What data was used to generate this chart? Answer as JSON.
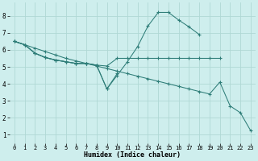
{
  "xlabel": "Humidex (Indice chaleur)",
  "bg_color": "#ceeeed",
  "grid_color": "#b0d8d5",
  "line_color": "#2e7d78",
  "xlim": [
    -0.5,
    23.5
  ],
  "ylim": [
    0.5,
    8.8
  ],
  "xticks": [
    0,
    1,
    2,
    3,
    4,
    5,
    6,
    7,
    8,
    9,
    10,
    11,
    12,
    13,
    14,
    15,
    16,
    17,
    18,
    19,
    20,
    21,
    22,
    23
  ],
  "yticks": [
    1,
    2,
    3,
    4,
    5,
    6,
    7,
    8
  ],
  "series": [
    {
      "x": [
        0,
        1,
        2,
        3,
        4,
        5,
        6,
        7,
        8,
        9,
        10,
        11,
        12,
        13,
        14,
        15,
        16,
        17,
        18
      ],
      "y": [
        6.5,
        6.3,
        5.8,
        5.55,
        5.4,
        5.3,
        5.2,
        5.2,
        5.1,
        3.7,
        4.5,
        5.3,
        6.2,
        7.4,
        8.2,
        8.2,
        7.75,
        7.35,
        6.9
      ]
    },
    {
      "x": [
        0,
        1,
        2,
        3,
        4,
        5,
        6,
        7,
        8,
        9,
        10,
        11,
        12,
        13,
        14,
        15,
        16,
        17,
        18,
        19,
        20
      ],
      "y": [
        6.5,
        6.3,
        5.8,
        5.55,
        5.4,
        5.3,
        5.2,
        5.2,
        5.1,
        5.05,
        5.5,
        5.5,
        5.5,
        5.5,
        5.5,
        5.5,
        5.5,
        5.5,
        5.5,
        5.5,
        5.5
      ]
    },
    {
      "x": [
        0,
        1,
        2,
        3,
        4,
        5,
        6,
        7,
        8,
        9,
        10,
        11,
        12,
        13,
        14,
        15,
        16,
        17,
        18,
        19,
        20,
        21,
        22,
        23
      ],
      "y": [
        6.5,
        6.3,
        6.1,
        5.9,
        5.7,
        5.5,
        5.35,
        5.2,
        5.05,
        4.9,
        4.75,
        4.6,
        4.45,
        4.3,
        4.15,
        4.0,
        3.85,
        3.7,
        3.55,
        3.4,
        4.1,
        2.7,
        2.3,
        1.25
      ]
    },
    {
      "x": [
        0,
        1,
        2,
        3,
        4,
        5,
        6,
        7,
        8,
        9,
        10
      ],
      "y": [
        6.5,
        6.3,
        5.8,
        5.55,
        5.4,
        5.3,
        5.2,
        5.2,
        5.1,
        3.7,
        4.6
      ]
    }
  ]
}
